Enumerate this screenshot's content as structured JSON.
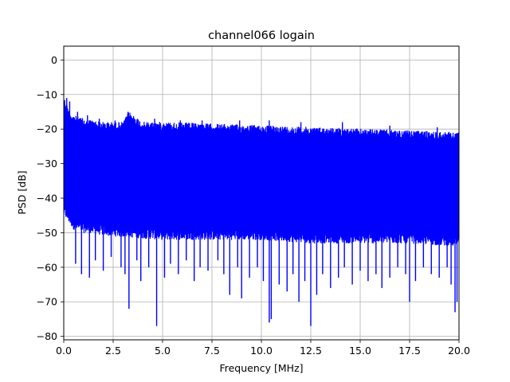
{
  "chart_data": {
    "type": "line",
    "title": "channel066 logain",
    "xlabel": "Frequency [MHz]",
    "ylabel": "PSD [dB]",
    "xlim": [
      0,
      20
    ],
    "ylim": [
      -81,
      4
    ],
    "xticks": [
      0,
      2.5,
      5,
      7.5,
      10,
      12.5,
      15,
      17.5,
      20
    ],
    "xtick_labels": [
      "0.0",
      "2.5",
      "5.0",
      "7.5",
      "10.0",
      "12.5",
      "15.0",
      "17.5",
      "20.0"
    ],
    "yticks": [
      0,
      -10,
      -20,
      -30,
      -40,
      -50,
      -60,
      -70,
      -80
    ],
    "ytick_labels": [
      "0",
      "−10",
      "−20",
      "−30",
      "−40",
      "−50",
      "−60",
      "−70",
      "−80"
    ],
    "grid": true,
    "series": [
      {
        "color": "#0000ff",
        "upper_envelope": {
          "x": [
            0,
            0.1,
            0.3,
            0.5,
            1.0,
            2.0,
            3.0,
            3.3,
            4.0,
            5.0,
            7.5,
            10.0,
            12.5,
            15.0,
            17.5,
            20.0
          ],
          "y": [
            -10.5,
            -12,
            -15,
            -16,
            -17,
            -18,
            -18,
            -15,
            -18,
            -18,
            -18.5,
            -19,
            -19.5,
            -20,
            -20.5,
            -21
          ]
        },
        "lower_envelope": {
          "x": [
            0,
            0.5,
            1.0,
            2.5,
            5.0,
            7.5,
            10.0,
            12.5,
            15.0,
            17.5,
            20.0
          ],
          "y": [
            -45,
            -49,
            -50,
            -51,
            -52,
            -52,
            -52,
            -53,
            -53,
            -53,
            -54
          ]
        },
        "dips": {
          "x": [
            0.6,
            0.9,
            1.3,
            1.6,
            2.0,
            2.4,
            2.9,
            3.1,
            3.3,
            3.7,
            3.9,
            4.3,
            4.7,
            5.1,
            5.4,
            5.8,
            6.2,
            6.6,
            6.9,
            7.3,
            7.8,
            8.1,
            8.4,
            8.8,
            9.0,
            9.4,
            9.8,
            10.1,
            10.4,
            10.5,
            10.9,
            11.3,
            11.6,
            11.9,
            12.2,
            12.5,
            12.8,
            13.1,
            13.5,
            13.9,
            14.2,
            14.6,
            15.0,
            15.4,
            15.8,
            16.1,
            16.5,
            16.9,
            17.3,
            17.5,
            17.8,
            18.2,
            18.6,
            19.0,
            19.4,
            19.6,
            19.8,
            19.9
          ],
          "y": [
            -59,
            -62,
            -63,
            -58,
            -61,
            -57,
            -60,
            -62,
            -72,
            -58,
            -64,
            -60,
            -77,
            -63,
            -59,
            -62,
            -58,
            -64,
            -60,
            -61,
            -58,
            -62,
            -68,
            -60,
            -69,
            -63,
            -60,
            -64,
            -76,
            -75,
            -65,
            -67,
            -62,
            -70,
            -64,
            -77,
            -68,
            -62,
            -66,
            -63,
            -60,
            -65,
            -61,
            -64,
            -62,
            -66,
            -63,
            -60,
            -62,
            -70,
            -64,
            -60,
            -62,
            -63,
            -60,
            -65,
            -73,
            -70
          ]
        },
        "peaks": {
          "x": [
            0.15,
            0.3,
            0.7,
            1.2,
            1.8,
            2.6,
            3.25,
            4.6,
            5.9,
            7.0,
            8.9,
            10.4,
            12.0,
            14.1,
            16.5,
            18.9
          ],
          "y": [
            -11,
            -12,
            -15,
            -16,
            -17,
            -17.5,
            -15,
            -17,
            -17.5,
            -17.5,
            -17.5,
            -17.5,
            -18,
            -18,
            -19,
            -19.5
          ]
        }
      }
    ]
  }
}
